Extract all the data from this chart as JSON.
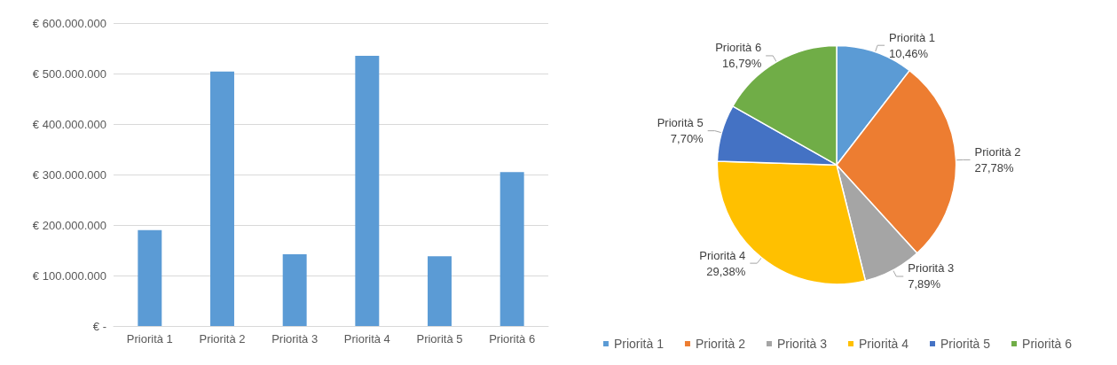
{
  "chart_data": [
    {
      "type": "bar",
      "categories": [
        "Priorità 1",
        "Priorità 2",
        "Priorità 3",
        "Priorità 4",
        "Priorità 5",
        "Priorità 6"
      ],
      "values": [
        190000000,
        504000000,
        142000000,
        535000000,
        138000000,
        305000000
      ],
      "color": "#5b9bd5",
      "ylim": [
        0,
        600000000
      ],
      "yticks": [
        {
          "value": 0,
          "label": "€ -"
        },
        {
          "value": 100000000,
          "label": "€ 100.000.000"
        },
        {
          "value": 200000000,
          "label": "€ 200.000.000"
        },
        {
          "value": 300000000,
          "label": "€ 300.000.000"
        },
        {
          "value": 400000000,
          "label": "€ 400.000.000"
        },
        {
          "value": 500000000,
          "label": "€ 500.000.000"
        },
        {
          "value": 600000000,
          "label": "€ 600.000.000"
        }
      ],
      "grid": "y",
      "legend": false
    },
    {
      "type": "pie",
      "categories": [
        "Priorità 1",
        "Priorità 2",
        "Priorità 3",
        "Priorità 4",
        "Priorità 5",
        "Priorità 6"
      ],
      "values": [
        10.46,
        27.78,
        7.89,
        29.38,
        7.7,
        16.79
      ],
      "value_labels": [
        "10,46%",
        "27,78%",
        "7,89%",
        "29,38%",
        "7,70%",
        "16,79%"
      ],
      "colors": [
        "#5b9bd5",
        "#ed7d31",
        "#a5a5a5",
        "#ffc000",
        "#4472c4",
        "#70ad47"
      ],
      "legend": "bottom"
    }
  ]
}
